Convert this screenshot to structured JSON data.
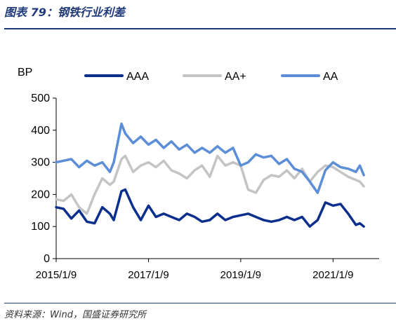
{
  "header": {
    "title": "图表 79：钢铁行业利差"
  },
  "footer": {
    "source": "资料来源：Wind，国盛证券研究所"
  },
  "colors": {
    "title": "#1f3a7a",
    "AAA": "#0b2f8c",
    "AA+": "#c4c4c4",
    "AA": "#5b8ed6"
  },
  "chart_data": {
    "type": "line",
    "title": "",
    "ylabel": "BP",
    "xlabel": "",
    "ylim": [
      0,
      500
    ],
    "yticks": [
      0,
      100,
      200,
      300,
      400,
      500
    ],
    "xlim": [
      "2015/1/9",
      "2022/1/9"
    ],
    "xticks": [
      "2015/1/9",
      "2017/1/9",
      "2019/1/9",
      "2021/1/9"
    ],
    "legend": "top",
    "grid": false,
    "series": [
      {
        "name": "AAA",
        "color": "#0b2f8c",
        "points": [
          [
            "2015/1/9",
            160
          ],
          [
            "2015/3/9",
            155
          ],
          [
            "2015/5/9",
            125
          ],
          [
            "2015/7/9",
            150
          ],
          [
            "2015/9/9",
            115
          ],
          [
            "2015/11/9",
            110
          ],
          [
            "2016/1/9",
            160
          ],
          [
            "2016/3/9",
            140
          ],
          [
            "2016/4/9",
            120
          ],
          [
            "2016/6/9",
            210
          ],
          [
            "2016/7/9",
            215
          ],
          [
            "2016/9/9",
            160
          ],
          [
            "2016/11/9",
            120
          ],
          [
            "2017/1/9",
            165
          ],
          [
            "2017/3/9",
            130
          ],
          [
            "2017/5/9",
            140
          ],
          [
            "2017/7/9",
            130
          ],
          [
            "2017/9/9",
            120
          ],
          [
            "2017/11/9",
            140
          ],
          [
            "2018/1/9",
            130
          ],
          [
            "2018/3/9",
            115
          ],
          [
            "2018/5/9",
            120
          ],
          [
            "2018/7/9",
            140
          ],
          [
            "2018/9/9",
            120
          ],
          [
            "2018/11/9",
            130
          ],
          [
            "2019/1/9",
            135
          ],
          [
            "2019/3/9",
            140
          ],
          [
            "2019/5/9",
            130
          ],
          [
            "2019/7/9",
            120
          ],
          [
            "2019/9/9",
            115
          ],
          [
            "2019/11/9",
            120
          ],
          [
            "2020/1/9",
            130
          ],
          [
            "2020/3/9",
            120
          ],
          [
            "2020/5/9",
            130
          ],
          [
            "2020/7/9",
            100
          ],
          [
            "2020/9/9",
            120
          ],
          [
            "2020/11/9",
            175
          ],
          [
            "2021/1/9",
            165
          ],
          [
            "2021/3/9",
            170
          ],
          [
            "2021/5/9",
            140
          ],
          [
            "2021/7/9",
            105
          ],
          [
            "2021/8/9",
            110
          ],
          [
            "2021/9/9",
            100
          ]
        ]
      },
      {
        "name": "AA+",
        "color": "#c4c4c4",
        "points": [
          [
            "2015/1/9",
            185
          ],
          [
            "2015/3/9",
            180
          ],
          [
            "2015/5/9",
            200
          ],
          [
            "2015/7/9",
            160
          ],
          [
            "2015/9/9",
            140
          ],
          [
            "2015/11/9",
            200
          ],
          [
            "2016/1/9",
            250
          ],
          [
            "2016/3/9",
            230
          ],
          [
            "2016/4/9",
            240
          ],
          [
            "2016/6/9",
            310
          ],
          [
            "2016/7/9",
            320
          ],
          [
            "2016/9/9",
            270
          ],
          [
            "2016/11/9",
            290
          ],
          [
            "2017/1/9",
            300
          ],
          [
            "2017/3/9",
            285
          ],
          [
            "2017/5/9",
            305
          ],
          [
            "2017/7/9",
            275
          ],
          [
            "2017/9/9",
            265
          ],
          [
            "2017/11/9",
            250
          ],
          [
            "2018/1/9",
            275
          ],
          [
            "2018/3/9",
            290
          ],
          [
            "2018/5/9",
            255
          ],
          [
            "2018/7/9",
            320
          ],
          [
            "2018/9/9",
            290
          ],
          [
            "2018/11/9",
            300
          ],
          [
            "2019/1/9",
            290
          ],
          [
            "2019/3/9",
            215
          ],
          [
            "2019/5/9",
            205
          ],
          [
            "2019/7/9",
            245
          ],
          [
            "2019/9/9",
            260
          ],
          [
            "2019/11/9",
            255
          ],
          [
            "2020/1/9",
            275
          ],
          [
            "2020/3/9",
            250
          ],
          [
            "2020/5/9",
            280
          ],
          [
            "2020/7/9",
            240
          ],
          [
            "2020/9/9",
            270
          ],
          [
            "2020/11/9",
            290
          ],
          [
            "2021/1/9",
            285
          ],
          [
            "2021/3/9",
            270
          ],
          [
            "2021/5/9",
            255
          ],
          [
            "2021/7/9",
            245
          ],
          [
            "2021/8/9",
            240
          ],
          [
            "2021/9/9",
            225
          ]
        ]
      },
      {
        "name": "AA",
        "color": "#5b8ed6",
        "points": [
          [
            "2015/1/9",
            300
          ],
          [
            "2015/3/9",
            305
          ],
          [
            "2015/5/9",
            310
          ],
          [
            "2015/7/9",
            285
          ],
          [
            "2015/9/9",
            305
          ],
          [
            "2015/11/9",
            290
          ],
          [
            "2016/1/9",
            300
          ],
          [
            "2016/3/9",
            270
          ],
          [
            "2016/4/9",
            300
          ],
          [
            "2016/6/9",
            420
          ],
          [
            "2016/7/9",
            390
          ],
          [
            "2016/9/9",
            360
          ],
          [
            "2016/11/9",
            380
          ],
          [
            "2017/1/9",
            355
          ],
          [
            "2017/3/9",
            370
          ],
          [
            "2017/5/9",
            345
          ],
          [
            "2017/7/9",
            365
          ],
          [
            "2017/9/9",
            340
          ],
          [
            "2017/11/9",
            355
          ],
          [
            "2018/1/9",
            330
          ],
          [
            "2018/3/9",
            345
          ],
          [
            "2018/5/9",
            330
          ],
          [
            "2018/7/9",
            350
          ],
          [
            "2018/9/9",
            330
          ],
          [
            "2018/11/9",
            345
          ],
          [
            "2019/1/9",
            290
          ],
          [
            "2019/3/9",
            300
          ],
          [
            "2019/5/9",
            325
          ],
          [
            "2019/7/9",
            315
          ],
          [
            "2019/9/9",
            320
          ],
          [
            "2019/11/9",
            295
          ],
          [
            "2020/1/9",
            310
          ],
          [
            "2020/3/9",
            280
          ],
          [
            "2020/5/9",
            270
          ],
          [
            "2020/7/9",
            240
          ],
          [
            "2020/9/9",
            205
          ],
          [
            "2020/11/9",
            275
          ],
          [
            "2021/1/9",
            300
          ],
          [
            "2021/3/9",
            285
          ],
          [
            "2021/5/9",
            280
          ],
          [
            "2021/7/9",
            270
          ],
          [
            "2021/8/9",
            290
          ],
          [
            "2021/9/9",
            260
          ]
        ]
      }
    ]
  }
}
